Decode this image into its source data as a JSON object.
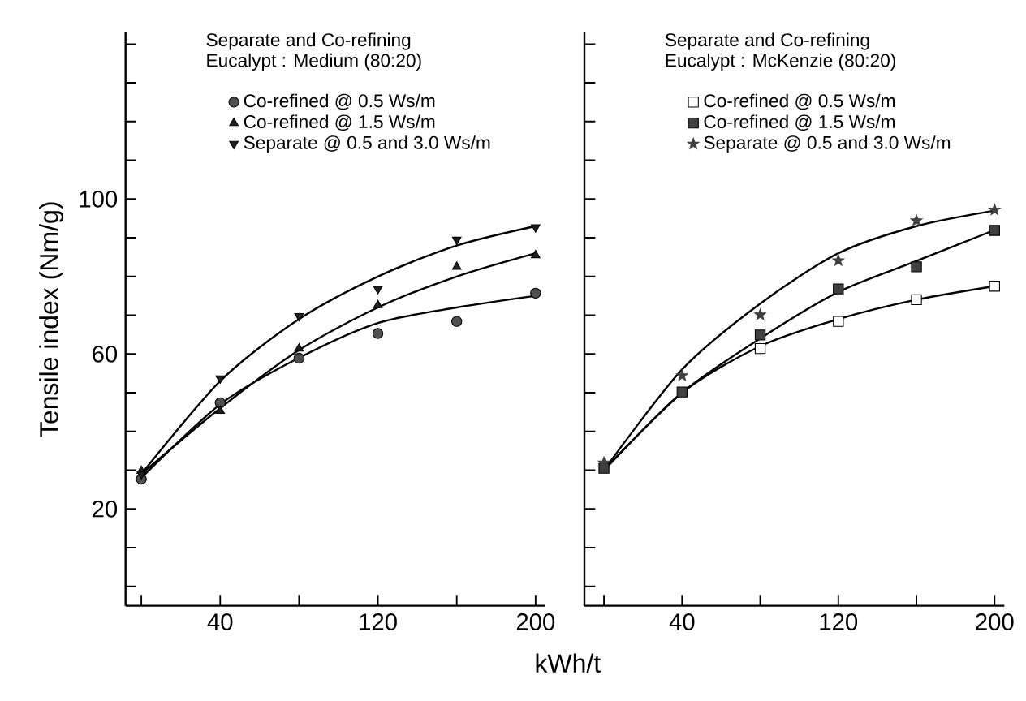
{
  "chart_data": [
    {
      "type": "scatter",
      "title": "Separate and Co-refining",
      "subtitle": "Eucalypt : Medium (80:20)",
      "ylabel": "Tensile index (Nm/g)",
      "legend": "top",
      "grid": false,
      "x": [
        0,
        40,
        80,
        120,
        160,
        200
      ],
      "xlim": [
        -8,
        205
      ],
      "ylim": [
        -5,
        143
      ],
      "xticks": [
        {
          "value": 0,
          "label": null
        },
        40,
        {
          "value": 80,
          "label": null
        },
        120,
        {
          "value": 160,
          "label": null
        },
        200
      ],
      "yticks": [
        {
          "value": 0,
          "label": null
        },
        {
          "value": 10,
          "label": null
        },
        20,
        {
          "value": 30,
          "label": null
        },
        {
          "value": 40,
          "label": null
        },
        {
          "value": 50,
          "label": null
        },
        60,
        {
          "value": 70,
          "label": null
        },
        {
          "value": 80,
          "label": null
        },
        {
          "value": 90,
          "label": null
        },
        100,
        {
          "value": 110,
          "label": null
        },
        {
          "value": 120,
          "label": null
        },
        {
          "value": 130,
          "label": null
        },
        {
          "value": 140,
          "label": null
        }
      ],
      "series": [
        {
          "name": "Co-refined @ 0.5 Ws/m",
          "color": "#505050",
          "marker": "circle",
          "values": [
            27.7,
            47.4,
            58.9,
            65.3,
            68.4,
            75.7
          ]
        },
        {
          "name": "Co-refined @ 1.5 Ws/m",
          "color": "#202020",
          "marker": "triangle",
          "values": [
            29.8,
            45.3,
            61.4,
            72.6,
            82.5,
            85.5
          ]
        },
        {
          "name": "Separate @ 0.5 and 3.0 Ws/m",
          "color": "#202020",
          "marker": "triangle_down",
          "values": [
            29,
            53.7,
            69.8,
            76.8,
            89.5,
            92.7
          ]
        },
        {
          "type": "line",
          "color": "#000000",
          "marker": "none",
          "values": [
            28,
            47,
            59,
            68,
            72,
            75
          ]
        },
        {
          "type": "line",
          "color": "#000000",
          "marker": "none",
          "values": [
            29,
            46,
            61,
            72,
            80,
            86
          ]
        },
        {
          "type": "line",
          "color": "#000000",
          "marker": "none",
          "values": [
            29,
            53,
            69,
            80,
            88,
            93
          ]
        }
      ]
    },
    {
      "type": "scatter",
      "title": "Separate and Co-refining",
      "subtitle": "Eucalypt : McKenzie (80:20)",
      "xlabel": "kWh/t",
      "legend": "top",
      "grid": false,
      "tick_labels": "x",
      "x": [
        0,
        40,
        80,
        120,
        160,
        200
      ],
      "xlim": [
        -10,
        205
      ],
      "ylim": [
        -5,
        143
      ],
      "xticks": [
        {
          "value": 0,
          "label": null
        },
        40,
        {
          "value": 80,
          "label": null
        },
        120,
        {
          "value": 160,
          "label": null
        },
        200
      ],
      "yticks": [
        0,
        10,
        20,
        30,
        40,
        50,
        60,
        70,
        80,
        90,
        100,
        110,
        120,
        130,
        140
      ],
      "series": [
        {
          "name": "Co-refined @ 0.5 Ws/m",
          "color": "#ffffff",
          "marker": "square",
          "values": [
            null,
            null,
            61.4,
            68.4,
            74,
            77.5
          ]
        },
        {
          "name": "Co-refined @ 1.5 Ws/m",
          "color": "#404040",
          "marker": "square",
          "values": [
            30.5,
            50.2,
            64.9,
            76.8,
            82.5,
            91.9
          ]
        },
        {
          "name": "Separate @ 0.5 and 3.0 Ws/m",
          "color": "#404040",
          "marker": "star",
          "values": [
            31.9,
            54.4,
            70.1,
            84.1,
            94.4,
            97.2
          ]
        },
        {
          "type": "line",
          "color": "#000000",
          "marker": "none",
          "values": [
            30,
            50,
            62,
            69,
            74,
            77.5
          ]
        },
        {
          "type": "line",
          "color": "#000000",
          "marker": "none",
          "values": [
            30,
            50,
            64,
            76,
            84,
            92
          ]
        },
        {
          "type": "line",
          "color": "#000000",
          "marker": "none",
          "values": [
            30,
            56,
            73,
            86,
            93,
            97
          ]
        }
      ]
    }
  ]
}
